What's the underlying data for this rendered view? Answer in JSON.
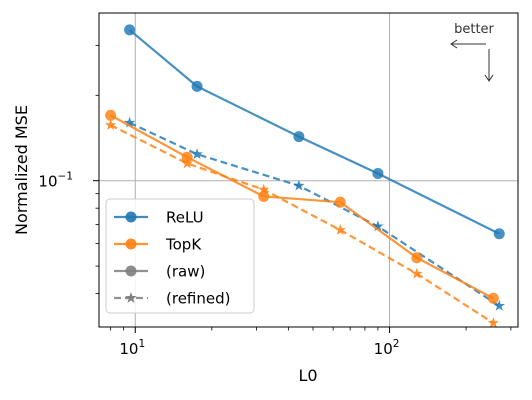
{
  "chart_data": {
    "type": "line",
    "xlabel": "L0",
    "ylabel": "Normalized MSE",
    "xscale": "log",
    "yscale": "log",
    "xlim": [
      7.2,
      320
    ],
    "ylim": [
      0.0305,
      0.39
    ],
    "x_ticks": [
      {
        "value": 10,
        "base": "10",
        "exp": "1"
      },
      {
        "value": 100,
        "base": "10",
        "exp": "2"
      }
    ],
    "y_ticks": [
      {
        "value": 0.1,
        "base": "10",
        "exp": "−1"
      }
    ],
    "grid": true,
    "legend_position": "lower-left",
    "legend": [
      {
        "label": "ReLU",
        "kind": "color",
        "color": "#1f77b4"
      },
      {
        "label": "TopK",
        "kind": "color",
        "color": "#ff7f0e"
      },
      {
        "label": "(raw)",
        "kind": "raw",
        "color": "#7f7f7f"
      },
      {
        "label": "(refined)",
        "kind": "refined",
        "color": "#7f7f7f"
      }
    ],
    "annotation": {
      "text": "better"
    },
    "series": [
      {
        "name": "ReLU",
        "style": "raw",
        "color": "#1f77b4",
        "x": [
          9.5,
          17.5,
          44,
          90,
          270
        ],
        "y": [
          0.34,
          0.215,
          0.143,
          0.106,
          0.065
        ]
      },
      {
        "name": "ReLU",
        "style": "refined",
        "color": "#1f77b4",
        "x": [
          9.5,
          17.5,
          44,
          90,
          270
        ],
        "y": [
          0.16,
          0.124,
          0.096,
          0.069,
          0.0362
        ]
      },
      {
        "name": "TopK",
        "style": "raw",
        "color": "#ff7f0e",
        "x": [
          8,
          16,
          32,
          64,
          128,
          256
        ],
        "y": [
          0.17,
          0.121,
          0.088,
          0.084,
          0.0535,
          0.0385
        ]
      },
      {
        "name": "TopK",
        "style": "refined",
        "color": "#ff7f0e",
        "x": [
          8,
          16,
          32,
          64,
          128,
          256
        ],
        "y": [
          0.157,
          0.115,
          0.093,
          0.067,
          0.047,
          0.0315
        ]
      }
    ]
  }
}
